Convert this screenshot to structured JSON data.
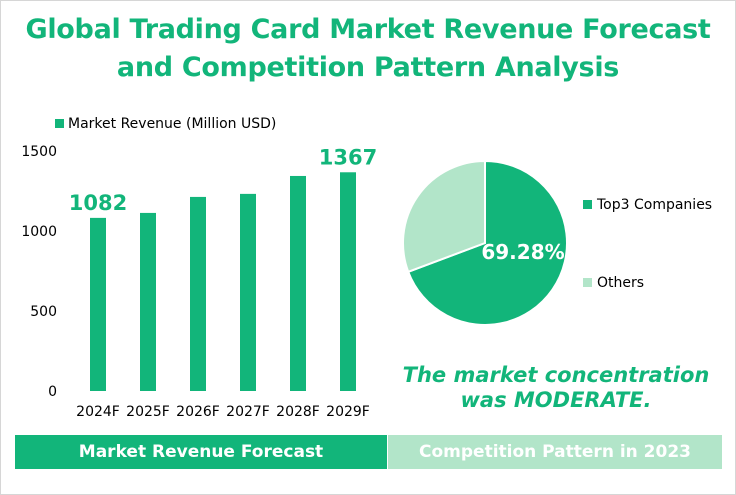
{
  "title_line1": "Global Trading Card Market Revenue Forecast",
  "title_line2": "and Competition Pattern Analysis",
  "conclusion_line1": "The market concentration",
  "conclusion_line2": "was MODERATE.",
  "footer": {
    "left_label": "Market Revenue Forecast",
    "right_label": "Competition Pattern in 2023"
  },
  "colors": {
    "primary": "#12b57a",
    "secondary": "#b2e5c9",
    "axis_text": "#000000"
  },
  "chart_data": [
    {
      "type": "bar",
      "legend": "Market Revenue (Million USD)",
      "categories": [
        "2024F",
        "2025F",
        "2026F",
        "2027F",
        "2028F",
        "2029F"
      ],
      "values": [
        1082,
        1113,
        1213,
        1232,
        1344,
        1367
      ],
      "ylim": [
        0,
        1500
      ],
      "yticks": [
        0,
        500,
        1000,
        1500
      ],
      "data_labels": [
        {
          "index": 0,
          "text": "1082"
        },
        {
          "index": 5,
          "text": "1367"
        }
      ],
      "grid": false,
      "legend_placement": "top-left"
    },
    {
      "type": "pie",
      "slices": [
        {
          "label": "Top3 Companies",
          "value": 69.28,
          "color": "#12b57a"
        },
        {
          "label": "Others",
          "value": 30.72,
          "color": "#b2e5c9"
        }
      ],
      "slice_label": "69.28%",
      "legend_placement": "right"
    }
  ]
}
